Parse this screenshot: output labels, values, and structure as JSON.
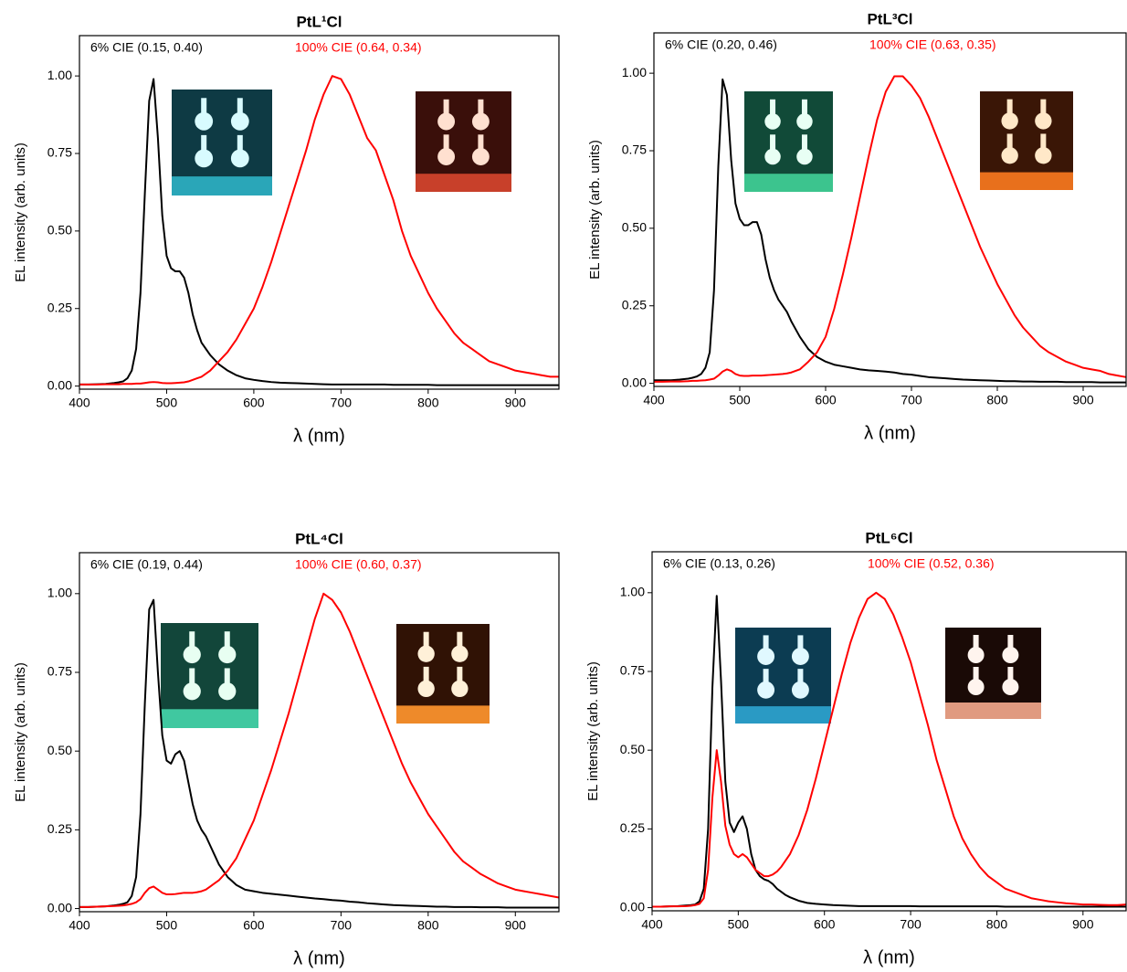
{
  "chart_data": [
    {
      "type": "line",
      "title": "PtL¹Cl",
      "xlabel": "λ (nm)",
      "ylabel": "EL intensity (arb. units)",
      "xlim": [
        400,
        950
      ],
      "ylim": [
        -0.01,
        1.13
      ],
      "xticks": [
        400,
        500,
        600,
        700,
        800,
        900
      ],
      "yticks": [
        {
          "value": 0,
          "label": "0.00"
        },
        0.25,
        {
          "value": 0.5,
          "label": "0.50"
        },
        0.75,
        {
          "value": 1,
          "label": "1.00"
        }
      ],
      "x": [
        400,
        410,
        420,
        430,
        440,
        445,
        450,
        455,
        460,
        465,
        470,
        475,
        480,
        485,
        490,
        495,
        500,
        505,
        510,
        515,
        520,
        525,
        530,
        535,
        540,
        545,
        550,
        555,
        560,
        570,
        580,
        590,
        600,
        610,
        620,
        630,
        640,
        650,
        660,
        670,
        680,
        690,
        700,
        710,
        720,
        730,
        740,
        750,
        760,
        770,
        780,
        790,
        800,
        810,
        820,
        830,
        840,
        850,
        860,
        870,
        880,
        890,
        900,
        910,
        920,
        930,
        940,
        950
      ],
      "series": [
        {
          "name": "6% CIE (0.15, 0.40)",
          "color": "#000000",
          "values": [
            0.005,
            0.005,
            0.006,
            0.007,
            0.01,
            0.012,
            0.015,
            0.025,
            0.05,
            0.12,
            0.3,
            0.62,
            0.92,
            0.99,
            0.8,
            0.55,
            0.42,
            0.38,
            0.37,
            0.37,
            0.35,
            0.3,
            0.23,
            0.18,
            0.14,
            0.12,
            0.1,
            0.085,
            0.07,
            0.05,
            0.035,
            0.025,
            0.02,
            0.016,
            0.013,
            0.011,
            0.01,
            0.009,
            0.008,
            0.007,
            0.006,
            0.005,
            0.005,
            0.005,
            0.005,
            0.005,
            0.005,
            0.005,
            0.004,
            0.004,
            0.004,
            0.004,
            0.004,
            0.003,
            0.003,
            0.003,
            0.003,
            0.003,
            0.003,
            0.003,
            0.003,
            0.003,
            0.003,
            0.003,
            0.003,
            0.003,
            0.003,
            0.003
          ]
        },
        {
          "name": "100% CIE (0.64, 0.34)",
          "color": "#ff0000",
          "values": [
            0.005,
            0.005,
            0.005,
            0.006,
            0.006,
            0.006,
            0.007,
            0.007,
            0.007,
            0.008,
            0.008,
            0.01,
            0.012,
            0.013,
            0.012,
            0.01,
            0.009,
            0.009,
            0.01,
            0.011,
            0.012,
            0.015,
            0.02,
            0.025,
            0.03,
            0.04,
            0.05,
            0.065,
            0.08,
            0.11,
            0.15,
            0.2,
            0.25,
            0.32,
            0.4,
            0.49,
            0.58,
            0.67,
            0.76,
            0.86,
            0.94,
            1.0,
            0.99,
            0.94,
            0.87,
            0.8,
            0.76,
            0.68,
            0.6,
            0.5,
            0.42,
            0.36,
            0.3,
            0.25,
            0.21,
            0.17,
            0.14,
            0.12,
            0.1,
            0.08,
            0.07,
            0.06,
            0.05,
            0.045,
            0.04,
            0.035,
            0.03,
            0.03
          ]
        }
      ]
    },
    {
      "type": "line",
      "title": "PtL³Cl",
      "xlabel": "λ (nm)",
      "ylabel": "EL intensity (arb. units)",
      "xlim": [
        400,
        950
      ],
      "ylim": [
        -0.01,
        1.13
      ],
      "xticks": [
        400,
        500,
        600,
        700,
        800,
        900
      ],
      "yticks": [
        {
          "value": 0,
          "label": "0.00"
        },
        0.25,
        {
          "value": 0.5,
          "label": "0.50"
        },
        0.75,
        {
          "value": 1,
          "label": "1.00"
        }
      ],
      "x": [
        400,
        410,
        420,
        430,
        440,
        445,
        450,
        455,
        460,
        465,
        470,
        475,
        480,
        485,
        490,
        495,
        500,
        505,
        510,
        515,
        520,
        525,
        530,
        535,
        540,
        545,
        550,
        555,
        560,
        570,
        580,
        590,
        600,
        610,
        620,
        630,
        640,
        650,
        660,
        670,
        680,
        690,
        700,
        710,
        720,
        730,
        740,
        750,
        760,
        770,
        780,
        790,
        800,
        810,
        820,
        830,
        840,
        850,
        860,
        870,
        880,
        890,
        900,
        910,
        920,
        930,
        940,
        950
      ],
      "series": [
        {
          "name": "6% CIE (0.20, 0.46)",
          "color": "#000000",
          "values": [
            0.01,
            0.01,
            0.01,
            0.012,
            0.015,
            0.018,
            0.022,
            0.03,
            0.05,
            0.1,
            0.3,
            0.7,
            0.98,
            0.93,
            0.72,
            0.58,
            0.53,
            0.51,
            0.51,
            0.52,
            0.52,
            0.48,
            0.4,
            0.34,
            0.3,
            0.27,
            0.25,
            0.23,
            0.2,
            0.15,
            0.11,
            0.085,
            0.07,
            0.06,
            0.055,
            0.05,
            0.045,
            0.042,
            0.04,
            0.038,
            0.035,
            0.03,
            0.028,
            0.024,
            0.02,
            0.018,
            0.016,
            0.014,
            0.012,
            0.011,
            0.01,
            0.009,
            0.008,
            0.007,
            0.007,
            0.006,
            0.006,
            0.005,
            0.005,
            0.005,
            0.004,
            0.004,
            0.004,
            0.004,
            0.003,
            0.003,
            0.003,
            0.003
          ]
        },
        {
          "name": "100% CIE (0.63, 0.35)",
          "color": "#ff0000",
          "values": [
            0.005,
            0.005,
            0.006,
            0.006,
            0.007,
            0.008,
            0.008,
            0.009,
            0.01,
            0.012,
            0.015,
            0.025,
            0.038,
            0.045,
            0.04,
            0.03,
            0.025,
            0.024,
            0.024,
            0.025,
            0.025,
            0.025,
            0.026,
            0.027,
            0.028,
            0.029,
            0.03,
            0.032,
            0.035,
            0.045,
            0.07,
            0.1,
            0.15,
            0.24,
            0.35,
            0.47,
            0.6,
            0.73,
            0.85,
            0.94,
            0.99,
            0.99,
            0.96,
            0.92,
            0.86,
            0.79,
            0.72,
            0.65,
            0.58,
            0.51,
            0.44,
            0.38,
            0.32,
            0.27,
            0.22,
            0.18,
            0.15,
            0.12,
            0.1,
            0.085,
            0.07,
            0.06,
            0.05,
            0.045,
            0.04,
            0.03,
            0.025,
            0.02
          ]
        }
      ]
    },
    {
      "type": "line",
      "title": "PtL⁴Cl",
      "xlabel": "λ (nm)",
      "ylabel": "EL intensity (arb. units)",
      "xlim": [
        400,
        950
      ],
      "ylim": [
        -0.01,
        1.13
      ],
      "xticks": [
        400,
        500,
        600,
        700,
        800,
        900
      ],
      "yticks": [
        {
          "value": 0,
          "label": "0.00"
        },
        0.25,
        {
          "value": 0.5,
          "label": "0.50"
        },
        0.75,
        {
          "value": 1,
          "label": "1.00"
        }
      ],
      "x": [
        400,
        410,
        420,
        430,
        440,
        445,
        450,
        455,
        460,
        465,
        470,
        475,
        480,
        485,
        490,
        495,
        500,
        505,
        510,
        515,
        520,
        525,
        530,
        535,
        540,
        545,
        550,
        555,
        560,
        570,
        580,
        590,
        600,
        610,
        620,
        630,
        640,
        650,
        660,
        670,
        680,
        690,
        700,
        710,
        720,
        730,
        740,
        750,
        760,
        770,
        780,
        790,
        800,
        810,
        820,
        830,
        840,
        850,
        860,
        870,
        880,
        890,
        900,
        910,
        920,
        930,
        940,
        950
      ],
      "series": [
        {
          "name": "6% CIE (0.19, 0.44)",
          "color": "#000000",
          "values": [
            0.005,
            0.005,
            0.006,
            0.007,
            0.01,
            0.012,
            0.015,
            0.02,
            0.04,
            0.1,
            0.3,
            0.65,
            0.95,
            0.98,
            0.75,
            0.55,
            0.47,
            0.46,
            0.49,
            0.5,
            0.47,
            0.4,
            0.33,
            0.28,
            0.25,
            0.23,
            0.2,
            0.17,
            0.14,
            0.1,
            0.075,
            0.06,
            0.055,
            0.05,
            0.047,
            0.044,
            0.041,
            0.038,
            0.035,
            0.032,
            0.03,
            0.027,
            0.025,
            0.022,
            0.02,
            0.017,
            0.015,
            0.013,
            0.011,
            0.01,
            0.009,
            0.008,
            0.007,
            0.006,
            0.006,
            0.005,
            0.005,
            0.005,
            0.004,
            0.004,
            0.004,
            0.003,
            0.003,
            0.003,
            0.003,
            0.003,
            0.003,
            0.003
          ]
        },
        {
          "name": "100% CIE (0.60, 0.37)",
          "color": "#ff0000",
          "values": [
            0.005,
            0.005,
            0.006,
            0.007,
            0.008,
            0.009,
            0.01,
            0.012,
            0.015,
            0.02,
            0.03,
            0.05,
            0.065,
            0.07,
            0.06,
            0.05,
            0.045,
            0.045,
            0.046,
            0.048,
            0.05,
            0.05,
            0.05,
            0.052,
            0.055,
            0.06,
            0.07,
            0.08,
            0.09,
            0.12,
            0.16,
            0.22,
            0.28,
            0.36,
            0.44,
            0.53,
            0.62,
            0.72,
            0.82,
            0.92,
            1.0,
            0.98,
            0.94,
            0.88,
            0.81,
            0.74,
            0.67,
            0.6,
            0.53,
            0.46,
            0.4,
            0.35,
            0.3,
            0.26,
            0.22,
            0.18,
            0.15,
            0.13,
            0.11,
            0.095,
            0.08,
            0.07,
            0.06,
            0.055,
            0.05,
            0.045,
            0.04,
            0.035
          ]
        }
      ]
    },
    {
      "type": "line",
      "title": "PtL⁶Cl",
      "xlabel": "λ (nm)",
      "ylabel": "EL intensity (arb. units)",
      "xlim": [
        400,
        950
      ],
      "ylim": [
        -0.01,
        1.13
      ],
      "xticks": [
        400,
        500,
        600,
        700,
        800,
        900
      ],
      "yticks": [
        {
          "value": 0,
          "label": "0.00"
        },
        0.25,
        {
          "value": 0.5,
          "label": "0.50"
        },
        0.75,
        {
          "value": 1,
          "label": "1.00"
        }
      ],
      "x": [
        400,
        410,
        420,
        430,
        440,
        445,
        450,
        455,
        460,
        465,
        470,
        475,
        480,
        485,
        490,
        495,
        500,
        505,
        510,
        515,
        520,
        525,
        530,
        535,
        540,
        545,
        550,
        555,
        560,
        570,
        580,
        590,
        600,
        610,
        620,
        630,
        640,
        650,
        660,
        670,
        680,
        690,
        700,
        710,
        720,
        730,
        740,
        750,
        760,
        770,
        780,
        790,
        800,
        810,
        820,
        830,
        840,
        850,
        860,
        870,
        880,
        890,
        900,
        910,
        920,
        930,
        940,
        950
      ],
      "series": [
        {
          "name": "6% CIE (0.13, 0.26)",
          "color": "#000000",
          "values": [
            0.003,
            0.003,
            0.004,
            0.005,
            0.007,
            0.008,
            0.01,
            0.02,
            0.06,
            0.25,
            0.7,
            0.99,
            0.72,
            0.4,
            0.27,
            0.24,
            0.27,
            0.29,
            0.25,
            0.17,
            0.12,
            0.1,
            0.09,
            0.085,
            0.075,
            0.06,
            0.05,
            0.04,
            0.033,
            0.022,
            0.015,
            0.012,
            0.01,
            0.008,
            0.007,
            0.006,
            0.005,
            0.005,
            0.005,
            0.005,
            0.005,
            0.005,
            0.005,
            0.004,
            0.004,
            0.004,
            0.004,
            0.004,
            0.004,
            0.004,
            0.004,
            0.004,
            0.004,
            0.003,
            0.003,
            0.003,
            0.003,
            0.003,
            0.003,
            0.003,
            0.003,
            0.003,
            0.003,
            0.003,
            0.003,
            0.003,
            0.003,
            0.003
          ]
        },
        {
          "name": "100% CIE (0.52, 0.36)",
          "color": "#ff0000",
          "values": [
            0.003,
            0.003,
            0.004,
            0.004,
            0.005,
            0.006,
            0.008,
            0.012,
            0.03,
            0.12,
            0.35,
            0.5,
            0.4,
            0.26,
            0.2,
            0.17,
            0.16,
            0.17,
            0.16,
            0.14,
            0.12,
            0.11,
            0.1,
            0.1,
            0.105,
            0.115,
            0.13,
            0.15,
            0.17,
            0.23,
            0.31,
            0.41,
            0.52,
            0.63,
            0.74,
            0.84,
            0.92,
            0.98,
            1.0,
            0.98,
            0.93,
            0.86,
            0.78,
            0.68,
            0.58,
            0.47,
            0.38,
            0.29,
            0.22,
            0.17,
            0.13,
            0.1,
            0.08,
            0.06,
            0.05,
            0.04,
            0.03,
            0.025,
            0.02,
            0.017,
            0.014,
            0.012,
            0.01,
            0.01,
            0.009,
            0.008,
            0.008,
            0.01
          ]
        }
      ]
    }
  ]
}
